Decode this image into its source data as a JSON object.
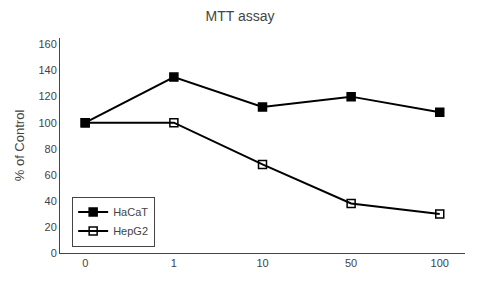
{
  "chart_data": {
    "type": "line",
    "title": "MTT assay",
    "ylabel": "% of Control",
    "categories": [
      "0",
      "1",
      "10",
      "50",
      "100"
    ],
    "series": [
      {
        "name": "HaCaT",
        "color": "#000000",
        "marker": "square",
        "values": [
          100,
          135,
          112,
          120,
          108
        ]
      },
      {
        "name": "HepG2",
        "color": "#000000",
        "marker": "square-open",
        "values": [
          100,
          100,
          68,
          38,
          30
        ]
      }
    ],
    "ylim": [
      0,
      165
    ],
    "yticks": [
      0,
      20,
      40,
      60,
      80,
      100,
      120,
      140,
      160
    ],
    "grid": false,
    "legend": "lower left"
  }
}
